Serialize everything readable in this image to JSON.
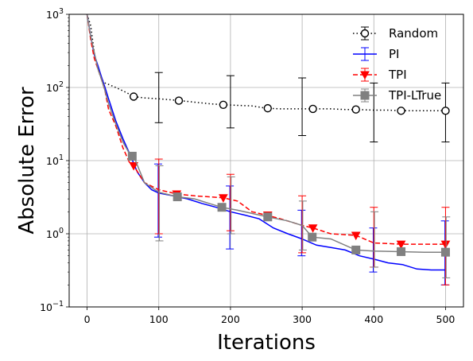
{
  "chart_data": {
    "type": "line",
    "xlabel": "Iterations",
    "ylabel": "Absolute Error",
    "yscale": "log",
    "xlim": [
      -25,
      525
    ],
    "ylim": [
      0.1,
      1000
    ],
    "grid": true,
    "legend_position": "top-right",
    "x_ticks": [
      0,
      100,
      200,
      300,
      400,
      500
    ],
    "x_tick_labels": [
      "0",
      "100",
      "200",
      "300",
      "400",
      "500"
    ],
    "y_ticks": [
      0.1,
      1,
      10,
      100,
      1000
    ],
    "y_tick_labels": [
      [
        "10",
        "−1"
      ],
      [
        "10",
        "0"
      ],
      [
        "10",
        "1"
      ],
      [
        "10",
        "2"
      ],
      [
        "10",
        "3"
      ]
    ],
    "series": [
      {
        "name": "Random",
        "color": "#000000",
        "style": "dotted",
        "marker": "circle-open",
        "x": [
          0,
          5,
          10,
          15,
          20,
          25,
          30,
          40,
          50,
          60,
          65,
          80,
          100,
          115,
          130,
          150,
          170,
          190,
          210,
          230,
          250,
          270,
          300,
          315,
          340,
          360,
          375,
          400,
          420,
          440,
          460,
          480,
          500
        ],
        "y": [
          1000,
          700,
          300,
          180,
          130,
          115,
          110,
          100,
          90,
          80,
          75,
          72,
          70,
          68,
          66,
          63,
          60,
          58,
          57,
          56,
          52,
          51,
          51,
          51,
          51,
          50,
          50,
          49,
          49,
          48,
          48,
          48,
          48
        ],
        "markers_x": [
          65,
          128,
          190,
          252,
          315,
          375,
          438,
          500
        ],
        "markers_y": [
          75,
          66,
          58,
          52,
          51,
          50,
          48,
          48
        ],
        "errorbars": [
          {
            "x": 100,
            "y": 70,
            "lo": 33,
            "hi": 160
          },
          {
            "x": 200,
            "y": 57,
            "lo": 28,
            "hi": 145
          },
          {
            "x": 300,
            "y": 51,
            "lo": 22,
            "hi": 135
          },
          {
            "x": 400,
            "y": 49,
            "lo": 18,
            "hi": 115
          },
          {
            "x": 500,
            "y": 48,
            "lo": 18,
            "hi": 115
          }
        ]
      },
      {
        "name": "PI",
        "color": "#0000ff",
        "style": "solid",
        "marker": "none",
        "x": [
          0,
          5,
          10,
          15,
          20,
          25,
          30,
          40,
          50,
          60,
          70,
          80,
          90,
          100,
          120,
          140,
          160,
          180,
          200,
          220,
          240,
          260,
          280,
          300,
          320,
          340,
          360,
          380,
          400,
          420,
          440,
          460,
          480,
          500
        ],
        "y": [
          1000,
          500,
          280,
          200,
          140,
          100,
          70,
          35,
          20,
          12,
          7,
          5,
          4,
          3.6,
          3.3,
          3,
          2.6,
          2.3,
          2.0,
          1.8,
          1.6,
          1.2,
          1.0,
          0.85,
          0.7,
          0.65,
          0.6,
          0.5,
          0.45,
          0.4,
          0.38,
          0.33,
          0.32,
          0.32
        ],
        "errorbars": [
          {
            "x": 100,
            "y": 3.6,
            "lo": 0.9,
            "hi": 9.0
          },
          {
            "x": 200,
            "y": 2.0,
            "lo": 0.62,
            "hi": 4.5
          },
          {
            "x": 300,
            "y": 0.85,
            "lo": 0.5,
            "hi": 2.1
          },
          {
            "x": 400,
            "y": 0.45,
            "lo": 0.3,
            "hi": 1.2
          },
          {
            "x": 500,
            "y": 0.32,
            "lo": 0.2,
            "hi": 1.5
          }
        ]
      },
      {
        "name": "TPI",
        "color": "#ff0000",
        "style": "dashed",
        "marker": "triangle-down",
        "x": [
          0,
          5,
          10,
          15,
          20,
          25,
          30,
          40,
          50,
          60,
          65,
          80,
          100,
          125,
          150,
          170,
          190,
          210,
          230,
          250,
          270,
          300,
          315,
          340,
          375,
          400,
          438,
          470,
          500
        ],
        "y": [
          1000,
          450,
          250,
          180,
          130,
          90,
          50,
          30,
          15,
          9,
          8.5,
          5,
          4,
          3.5,
          3.3,
          3.2,
          3.1,
          2.8,
          2.0,
          1.8,
          1.6,
          1.3,
          1.2,
          1.0,
          0.95,
          0.75,
          0.72,
          0.72,
          0.72
        ],
        "markers_x": [
          65,
          125,
          190,
          252,
          315,
          375,
          438,
          500
        ],
        "markers_y": [
          8.5,
          3.5,
          3.1,
          1.8,
          1.2,
          0.95,
          0.72,
          0.72
        ],
        "errorbars": [
          {
            "x": 100,
            "y": 4.0,
            "lo": 1.0,
            "hi": 10.5
          },
          {
            "x": 200,
            "y": 3.0,
            "lo": 1.1,
            "hi": 6.5
          },
          {
            "x": 300,
            "y": 1.3,
            "lo": 0.55,
            "hi": 3.3
          },
          {
            "x": 400,
            "y": 0.75,
            "lo": 0.35,
            "hi": 2.3
          },
          {
            "x": 500,
            "y": 0.72,
            "lo": 0.2,
            "hi": 2.3
          }
        ]
      },
      {
        "name": "TPI-LTrue",
        "color": "#808080",
        "style": "solid",
        "marker": "square",
        "x": [
          0,
          5,
          10,
          15,
          20,
          25,
          30,
          40,
          50,
          60,
          65,
          80,
          100,
          126,
          150,
          170,
          188,
          210,
          230,
          252,
          280,
          300,
          314,
          340,
          375,
          400,
          438,
          470,
          500
        ],
        "y": [
          1000,
          500,
          300,
          180,
          130,
          90,
          60,
          32,
          18,
          12,
          11.5,
          5,
          3.7,
          3.2,
          3.0,
          2.6,
          2.3,
          2.1,
          1.9,
          1.7,
          1.5,
          1.3,
          0.9,
          0.85,
          0.6,
          0.58,
          0.57,
          0.56,
          0.56
        ],
        "markers_x": [
          63,
          126,
          188,
          252,
          314,
          375,
          438,
          500
        ],
        "markers_y": [
          11.5,
          3.2,
          2.3,
          1.7,
          0.9,
          0.6,
          0.57,
          0.56
        ],
        "errorbars": [
          {
            "x": 100,
            "y": 3.7,
            "lo": 0.8,
            "hi": 8.5
          },
          {
            "x": 200,
            "y": 2.0,
            "lo": 1.0,
            "hi": 6.0
          },
          {
            "x": 300,
            "y": 1.3,
            "lo": 0.6,
            "hi": 2.8
          },
          {
            "x": 400,
            "y": 0.58,
            "lo": 0.35,
            "hi": 2.0
          },
          {
            "x": 500,
            "y": 0.56,
            "lo": 0.25,
            "hi": 1.7
          }
        ]
      }
    ]
  }
}
